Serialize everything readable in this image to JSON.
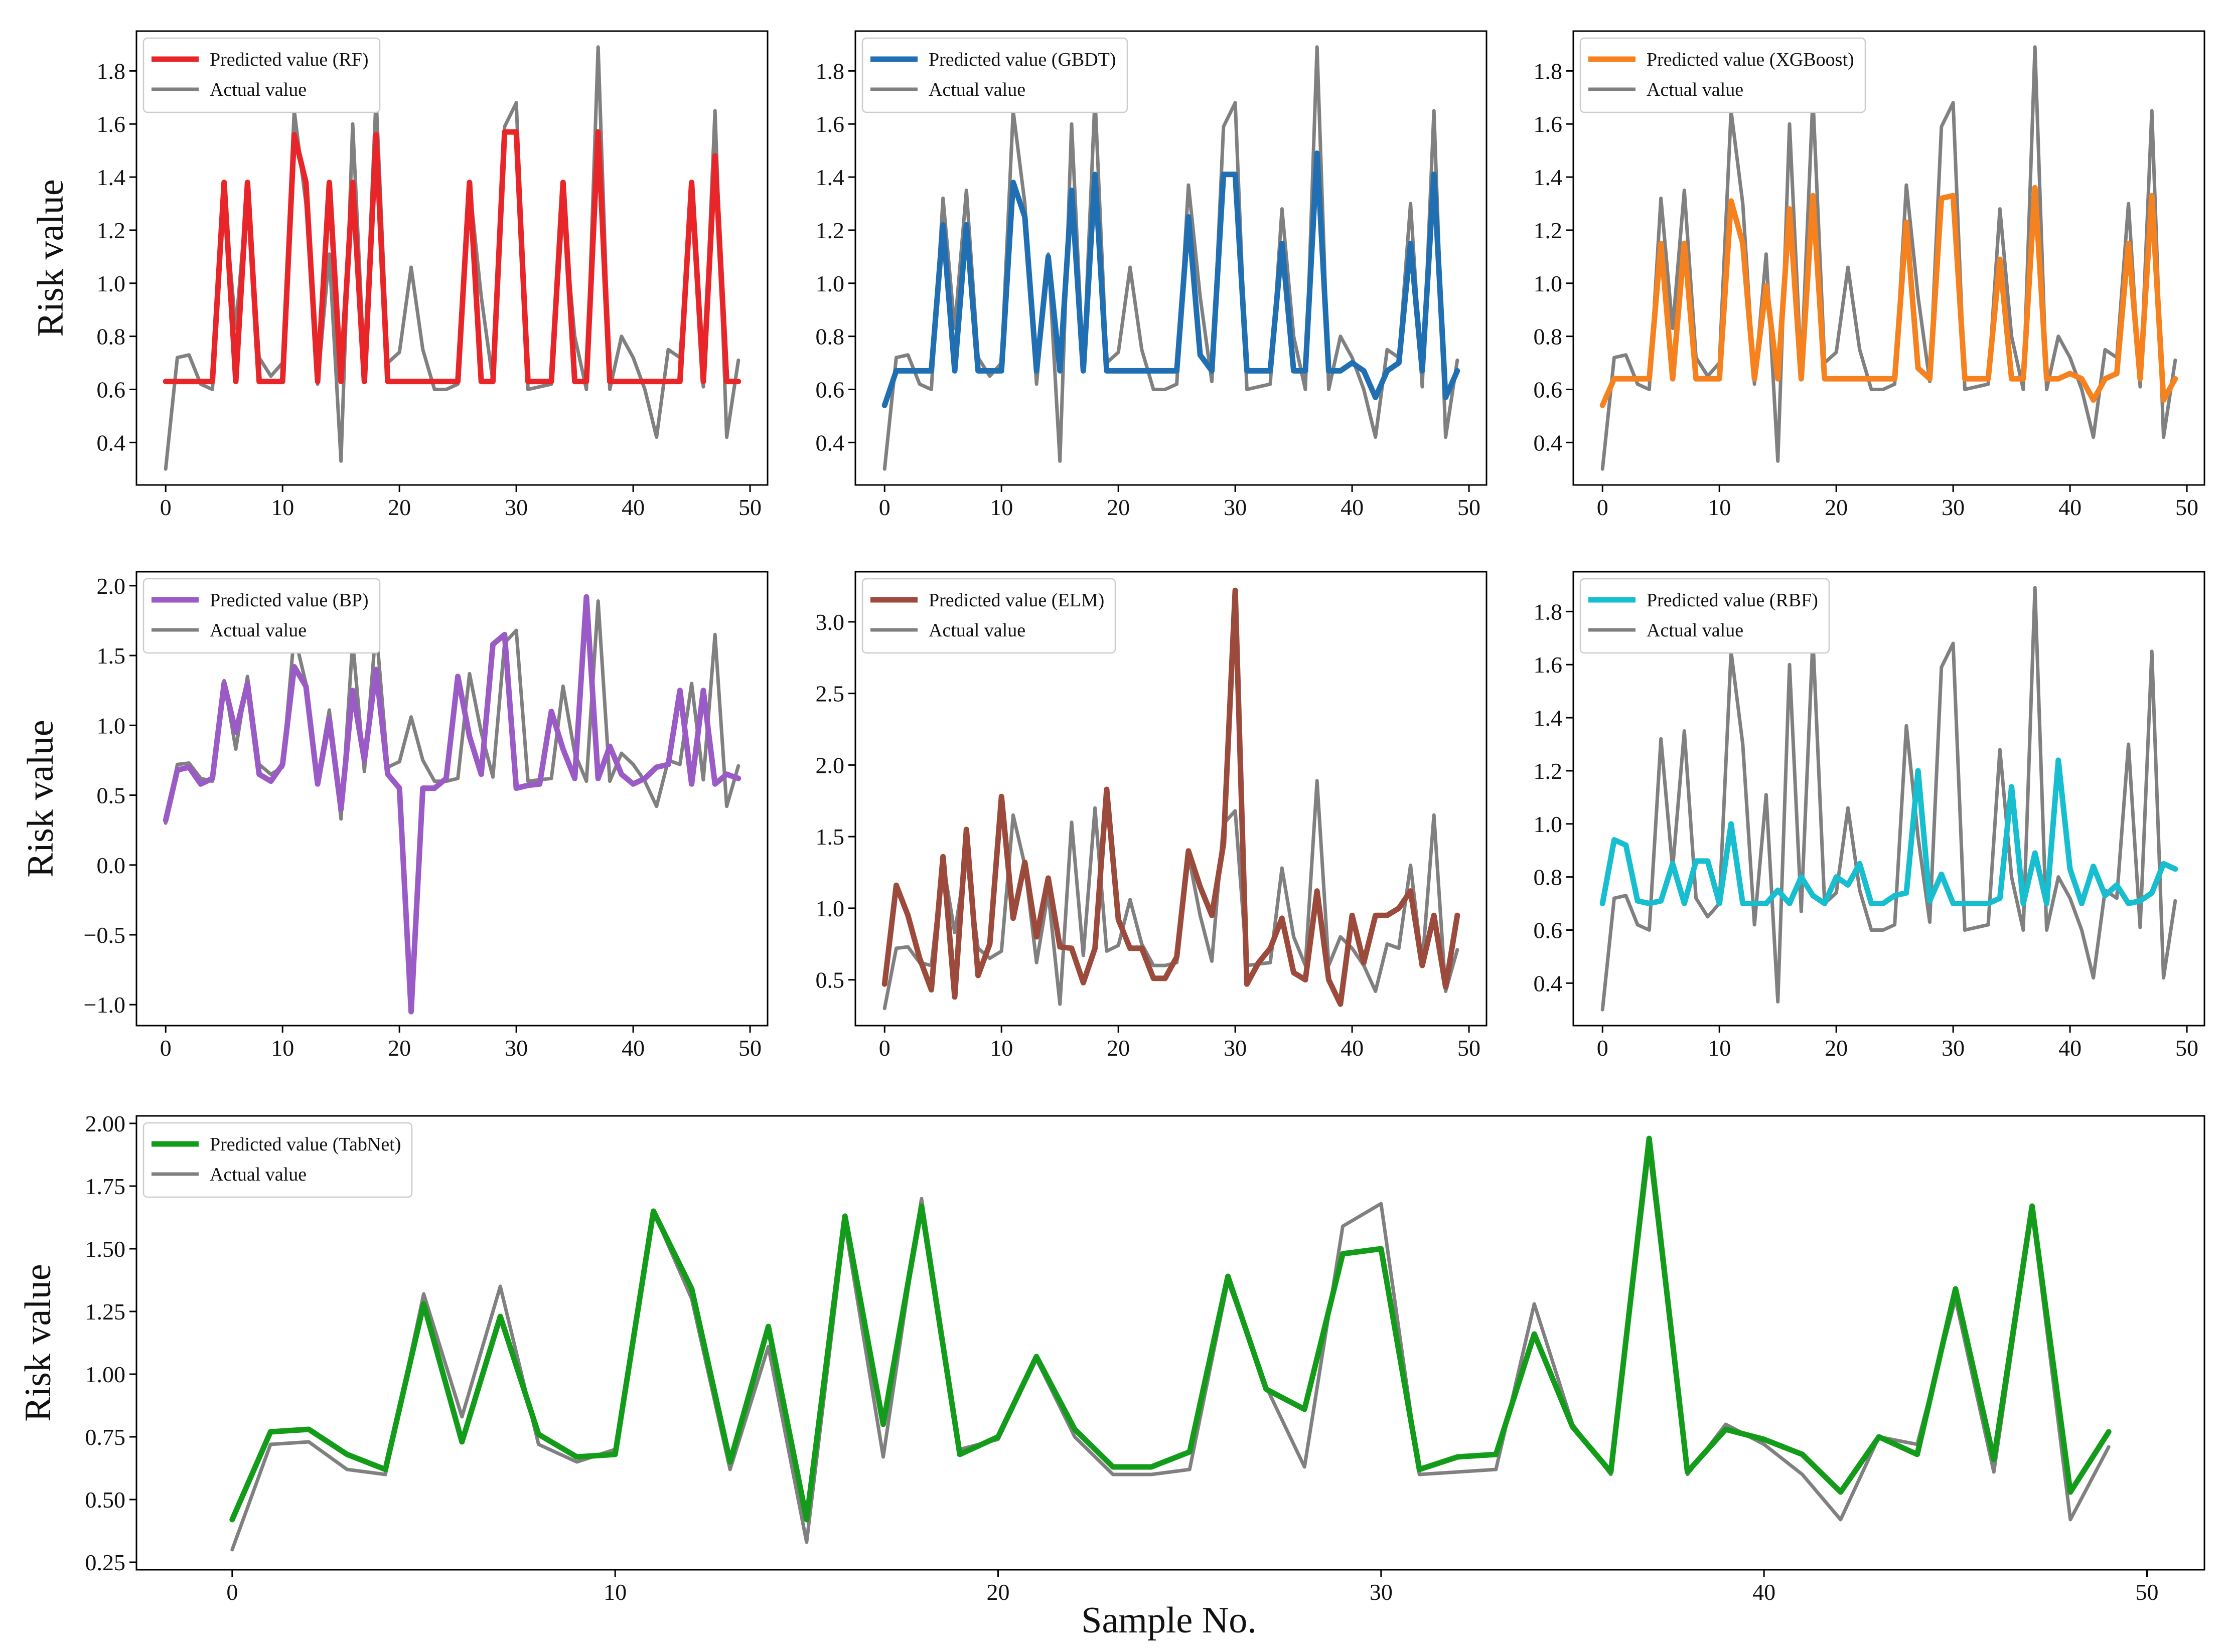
{
  "figure": {
    "xlabel": "Sample No."
  },
  "actual_series": [
    0.3,
    0.72,
    0.73,
    0.62,
    0.6,
    1.32,
    0.83,
    1.35,
    0.72,
    0.65,
    0.7,
    1.65,
    1.3,
    0.62,
    1.11,
    0.33,
    1.6,
    0.67,
    1.7,
    0.7,
    0.74,
    1.06,
    0.75,
    0.6,
    0.6,
    0.62,
    1.37,
    0.95,
    0.63,
    1.59,
    1.68,
    0.6,
    0.61,
    0.62,
    1.28,
    0.8,
    0.6,
    1.89,
    0.6,
    0.8,
    0.72,
    0.6,
    0.42,
    0.75,
    0.72,
    1.3,
    0.61,
    1.65,
    0.42,
    0.71
  ],
  "chart_data": [
    {
      "id": "rf",
      "type": "line",
      "ylabel": "Risk value",
      "xlim": [
        -2.5,
        51.5
      ],
      "ylim": [
        0.24,
        1.95
      ],
      "xticks": [
        0,
        10,
        20,
        30,
        40,
        50
      ],
      "yticks": [
        0.4,
        0.6,
        0.8,
        1.0,
        1.2,
        1.4,
        1.6,
        1.8
      ],
      "ytick_labels": [
        "0.4",
        "0.6",
        "0.8",
        "1.0",
        "1.2",
        "1.4",
        "1.6",
        "1.8"
      ],
      "legend": "top-left",
      "series": [
        {
          "name": "Predicted value (RF)",
          "color": "#e8262a",
          "values": [
            0.63,
            0.63,
            0.63,
            0.63,
            0.63,
            1.38,
            0.63,
            1.38,
            0.63,
            0.63,
            0.63,
            1.56,
            1.38,
            0.63,
            1.38,
            0.63,
            1.38,
            0.63,
            1.56,
            0.63,
            0.63,
            0.63,
            0.63,
            0.63,
            0.63,
            0.63,
            1.38,
            0.63,
            0.63,
            1.57,
            1.57,
            0.63,
            0.63,
            0.63,
            1.38,
            0.63,
            0.63,
            1.57,
            0.63,
            0.63,
            0.63,
            0.63,
            0.63,
            0.63,
            0.63,
            1.38,
            0.63,
            1.48,
            0.63,
            0.63
          ]
        },
        {
          "name": "Actual value",
          "color": "#808080",
          "values_ref": "actual_series"
        }
      ]
    },
    {
      "id": "gbdt",
      "type": "line",
      "ylabel": "",
      "xlim": [
        -2.5,
        51.5
      ],
      "ylim": [
        0.24,
        1.95
      ],
      "xticks": [
        0,
        10,
        20,
        30,
        40,
        50
      ],
      "yticks": [
        0.4,
        0.6,
        0.8,
        1.0,
        1.2,
        1.4,
        1.6,
        1.8
      ],
      "ytick_labels": [
        "0.4",
        "0.6",
        "0.8",
        "1.0",
        "1.2",
        "1.4",
        "1.6",
        "1.8"
      ],
      "legend": "top-left",
      "series": [
        {
          "name": "Predicted value (GBDT)",
          "color": "#1f6fb2",
          "values": [
            0.54,
            0.67,
            0.67,
            0.67,
            0.67,
            1.22,
            0.67,
            1.22,
            0.67,
            0.67,
            0.67,
            1.38,
            1.25,
            0.67,
            1.1,
            0.67,
            1.35,
            0.67,
            1.41,
            0.67,
            0.67,
            0.67,
            0.67,
            0.67,
            0.67,
            0.67,
            1.25,
            0.73,
            0.67,
            1.41,
            1.41,
            0.67,
            0.67,
            0.67,
            1.15,
            0.67,
            0.67,
            1.49,
            0.67,
            0.67,
            0.7,
            0.67,
            0.57,
            0.67,
            0.7,
            1.15,
            0.67,
            1.41,
            0.57,
            0.67
          ]
        },
        {
          "name": "Actual value",
          "color": "#808080",
          "values_ref": "actual_series"
        }
      ]
    },
    {
      "id": "xgboost",
      "type": "line",
      "ylabel": "",
      "xlim": [
        -2.5,
        51.5
      ],
      "ylim": [
        0.24,
        1.95
      ],
      "xticks": [
        0,
        10,
        20,
        30,
        40,
        50
      ],
      "yticks": [
        0.4,
        0.6,
        0.8,
        1.0,
        1.2,
        1.4,
        1.6,
        1.8
      ],
      "ytick_labels": [
        "0.4",
        "0.6",
        "0.8",
        "1.0",
        "1.2",
        "1.4",
        "1.6",
        "1.8"
      ],
      "legend": "top-left",
      "series": [
        {
          "name": "Predicted value (XGBoost)",
          "color": "#f5821f",
          "values": [
            0.54,
            0.64,
            0.64,
            0.64,
            0.64,
            1.15,
            0.64,
            1.15,
            0.64,
            0.64,
            0.64,
            1.31,
            1.15,
            0.64,
            0.99,
            0.64,
            1.28,
            0.64,
            1.33,
            0.64,
            0.64,
            0.64,
            0.64,
            0.64,
            0.64,
            0.64,
            1.23,
            0.68,
            0.64,
            1.32,
            1.33,
            0.64,
            0.64,
            0.64,
            1.09,
            0.64,
            0.64,
            1.36,
            0.64,
            0.64,
            0.66,
            0.64,
            0.56,
            0.64,
            0.66,
            1.15,
            0.64,
            1.33,
            0.56,
            0.64
          ]
        },
        {
          "name": "Actual value",
          "color": "#808080",
          "values_ref": "actual_series"
        }
      ]
    },
    {
      "id": "bp",
      "type": "line",
      "ylabel": "Risk value",
      "xlim": [
        -2.5,
        51.5
      ],
      "ylim": [
        -1.15,
        2.1
      ],
      "xticks": [
        0,
        10,
        20,
        30,
        40,
        50
      ],
      "yticks": [
        -1.0,
        -0.5,
        0.0,
        0.5,
        1.0,
        1.5,
        2.0
      ],
      "ytick_labels": [
        "−1.0",
        "−0.5",
        "0.0",
        "0.5",
        "1.0",
        "1.5",
        "2.0"
      ],
      "legend": "top-left",
      "series": [
        {
          "name": "Predicted value (BP)",
          "color": "#9a5bc6",
          "values": [
            0.32,
            0.68,
            0.7,
            0.58,
            0.62,
            1.3,
            0.95,
            1.3,
            0.65,
            0.6,
            0.72,
            1.42,
            1.28,
            0.58,
            1.05,
            0.4,
            1.25,
            0.75,
            1.4,
            0.65,
            0.55,
            -1.05,
            0.55,
            0.55,
            0.62,
            1.35,
            0.92,
            0.65,
            1.58,
            1.65,
            0.55,
            0.57,
            0.58,
            1.1,
            0.83,
            0.62,
            1.92,
            0.62,
            0.85,
            0.65,
            0.58,
            0.62,
            0.7,
            0.72,
            1.25,
            0.58,
            1.25,
            0.58,
            0.65,
            0.62
          ]
        },
        {
          "name": "Actual value",
          "color": "#808080",
          "values_ref": "actual_series"
        }
      ]
    },
    {
      "id": "elm",
      "type": "line",
      "ylabel": "",
      "xlim": [
        -2.5,
        51.5
      ],
      "ylim": [
        0.18,
        3.35
      ],
      "xticks": [
        0,
        10,
        20,
        30,
        40,
        50
      ],
      "yticks": [
        0.5,
        1.0,
        1.5,
        2.0,
        2.5,
        3.0
      ],
      "ytick_labels": [
        "0.5",
        "1.0",
        "1.5",
        "2.0",
        "2.5",
        "3.0"
      ],
      "legend": "top-left",
      "series": [
        {
          "name": "Predicted value (ELM)",
          "color": "#9b4a3c",
          "values": [
            0.47,
            1.16,
            0.95,
            0.65,
            0.43,
            1.36,
            0.38,
            1.55,
            0.53,
            0.75,
            1.78,
            0.93,
            1.32,
            0.8,
            1.21,
            0.73,
            0.72,
            0.48,
            0.72,
            1.83,
            0.92,
            0.72,
            0.72,
            0.51,
            0.51,
            0.66,
            1.4,
            1.15,
            0.95,
            1.45,
            3.22,
            0.47,
            0.62,
            0.72,
            0.93,
            0.55,
            0.5,
            1.12,
            0.5,
            0.33,
            0.95,
            0.62,
            0.95,
            0.95,
            1.0,
            1.12,
            0.6,
            0.95,
            0.45,
            0.95
          ]
        },
        {
          "name": "Actual value",
          "color": "#808080",
          "values_ref": "actual_series"
        }
      ]
    },
    {
      "id": "rbf",
      "type": "line",
      "ylabel": "",
      "xlim": [
        -2.5,
        51.5
      ],
      "ylim": [
        0.24,
        1.95
      ],
      "xticks": [
        0,
        10,
        20,
        30,
        40,
        50
      ],
      "yticks": [
        0.4,
        0.6,
        0.8,
        1.0,
        1.2,
        1.4,
        1.6,
        1.8
      ],
      "ytick_labels": [
        "0.4",
        "0.6",
        "0.8",
        "1.0",
        "1.2",
        "1.4",
        "1.6",
        "1.8"
      ],
      "legend": "top-left",
      "series": [
        {
          "name": "Predicted value (RBF)",
          "color": "#17becf",
          "values": [
            0.7,
            0.94,
            0.92,
            0.71,
            0.7,
            0.71,
            0.85,
            0.7,
            0.86,
            0.86,
            0.7,
            1.0,
            0.7,
            0.7,
            0.7,
            0.75,
            0.7,
            0.8,
            0.73,
            0.7,
            0.8,
            0.77,
            0.85,
            0.7,
            0.7,
            0.73,
            0.74,
            1.2,
            0.71,
            0.81,
            0.7,
            0.7,
            0.7,
            0.7,
            0.72,
            1.14,
            0.7,
            0.89,
            0.7,
            1.24,
            0.83,
            0.7,
            0.84,
            0.73,
            0.77,
            0.7,
            0.71,
            0.74,
            0.85,
            0.83
          ]
        },
        {
          "name": "Actual value",
          "color": "#808080",
          "values_ref": "actual_series"
        }
      ]
    },
    {
      "id": "tabnet",
      "type": "line",
      "ylabel": "Risk value",
      "xlim": [
        -2.5,
        51.5
      ],
      "ylim": [
        0.22,
        2.03
      ],
      "xticks": [
        0,
        10,
        20,
        30,
        40,
        50
      ],
      "yticks": [
        0.25,
        0.5,
        0.75,
        1.0,
        1.25,
        1.5,
        1.75,
        2.0
      ],
      "ytick_labels": [
        "0.25",
        "0.50",
        "0.75",
        "1.00",
        "1.25",
        "1.50",
        "1.75",
        "2.00"
      ],
      "legend": "top-left",
      "series": [
        {
          "name": "Predicted value (TabNet)",
          "color": "#129c1a",
          "values": [
            0.42,
            0.77,
            0.78,
            0.68,
            0.62,
            1.28,
            0.73,
            1.23,
            0.76,
            0.67,
            0.68,
            1.65,
            1.34,
            0.65,
            1.19,
            0.42,
            1.63,
            0.8,
            1.67,
            0.68,
            0.75,
            1.07,
            0.78,
            0.63,
            0.63,
            0.69,
            1.39,
            0.94,
            0.86,
            1.48,
            1.5,
            0.62,
            0.67,
            0.68,
            1.16,
            0.79,
            0.61,
            1.94,
            0.61,
            0.78,
            0.74,
            0.68,
            0.53,
            0.75,
            0.68,
            1.34,
            0.66,
            1.67,
            0.53,
            0.77
          ]
        },
        {
          "name": "Actual value",
          "color": "#808080",
          "values_ref": "actual_series"
        }
      ]
    }
  ]
}
